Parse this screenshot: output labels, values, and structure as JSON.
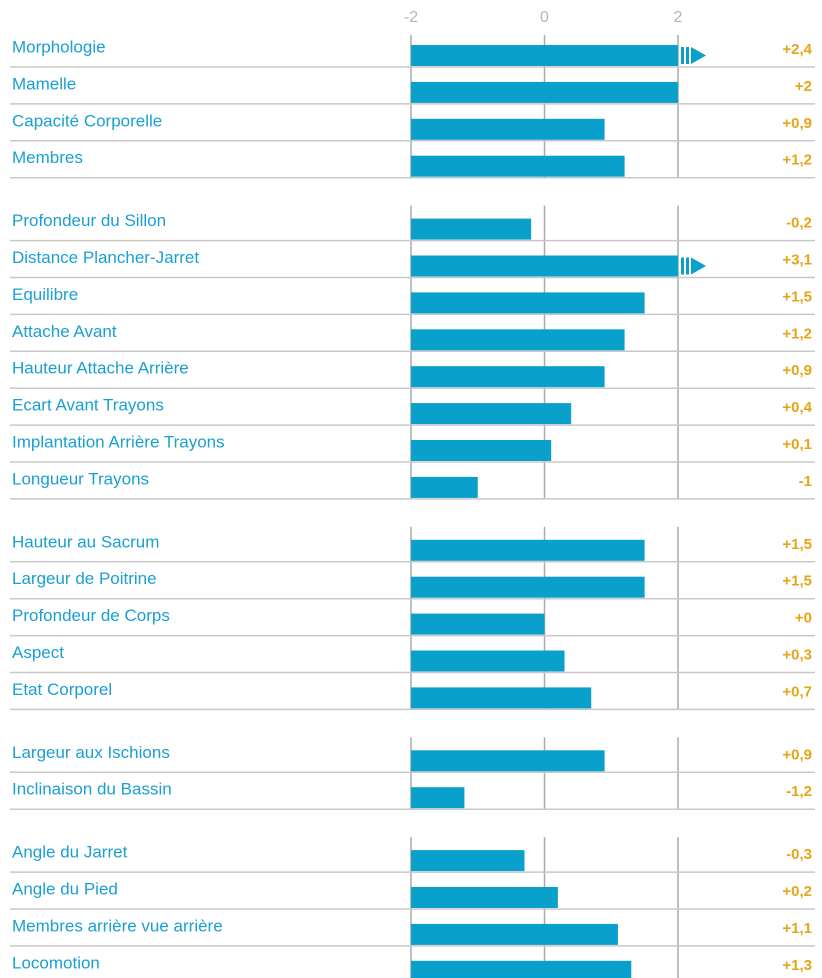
{
  "chart_data": {
    "type": "bar",
    "color": "#0aa0cc",
    "xlim": [
      -2,
      2
    ],
    "xticks": [
      -2,
      0,
      2
    ],
    "grid": true,
    "groups": [
      {
        "categories": [
          "Morphologie",
          "Mamelle",
          "Capacité Corporelle",
          "Membres"
        ],
        "values": [
          2.4,
          2,
          0.9,
          1.2
        ],
        "value_labels": [
          "+2,4",
          "+2",
          "+0,9",
          "+1,2"
        ]
      },
      {
        "categories": [
          "Profondeur du Sillon",
          "Distance Plancher-Jarret",
          "Equilibre",
          "Attache Avant",
          "Hauteur Attache Arrière",
          "Ecart Avant Trayons",
          "Implantation Arrière Trayons",
          "Longueur Trayons"
        ],
        "values": [
          -0.2,
          3.1,
          1.5,
          1.2,
          0.9,
          0.4,
          0.1,
          -1
        ],
        "value_labels": [
          "-0,2",
          "+3,1",
          "+1,5",
          "+1,2",
          "+0,9",
          "+0,4",
          "+0,1",
          "-1"
        ]
      },
      {
        "categories": [
          "Hauteur au Sacrum",
          "Largeur de Poitrine",
          "Profondeur de Corps",
          "Aspect",
          "Etat Corporel"
        ],
        "values": [
          1.5,
          1.5,
          0,
          0.3,
          0.7
        ],
        "value_labels": [
          "+1,5",
          "+1,5",
          "+0",
          "+0,3",
          "+0,7"
        ]
      },
      {
        "categories": [
          "Largeur aux Ischions",
          "Inclinaison du Bassin"
        ],
        "values": [
          0.9,
          -1.2
        ],
        "value_labels": [
          "+0,9",
          "-1,2"
        ]
      },
      {
        "categories": [
          "Angle du Jarret",
          "Angle du Pied",
          "Membres arrière vue arrière",
          "Locomotion"
        ],
        "values": [
          -0.3,
          0.2,
          1.1,
          1.3
        ],
        "value_labels": [
          "-0,3",
          "+0,2",
          "+1,1",
          "+1,3"
        ]
      }
    ]
  }
}
